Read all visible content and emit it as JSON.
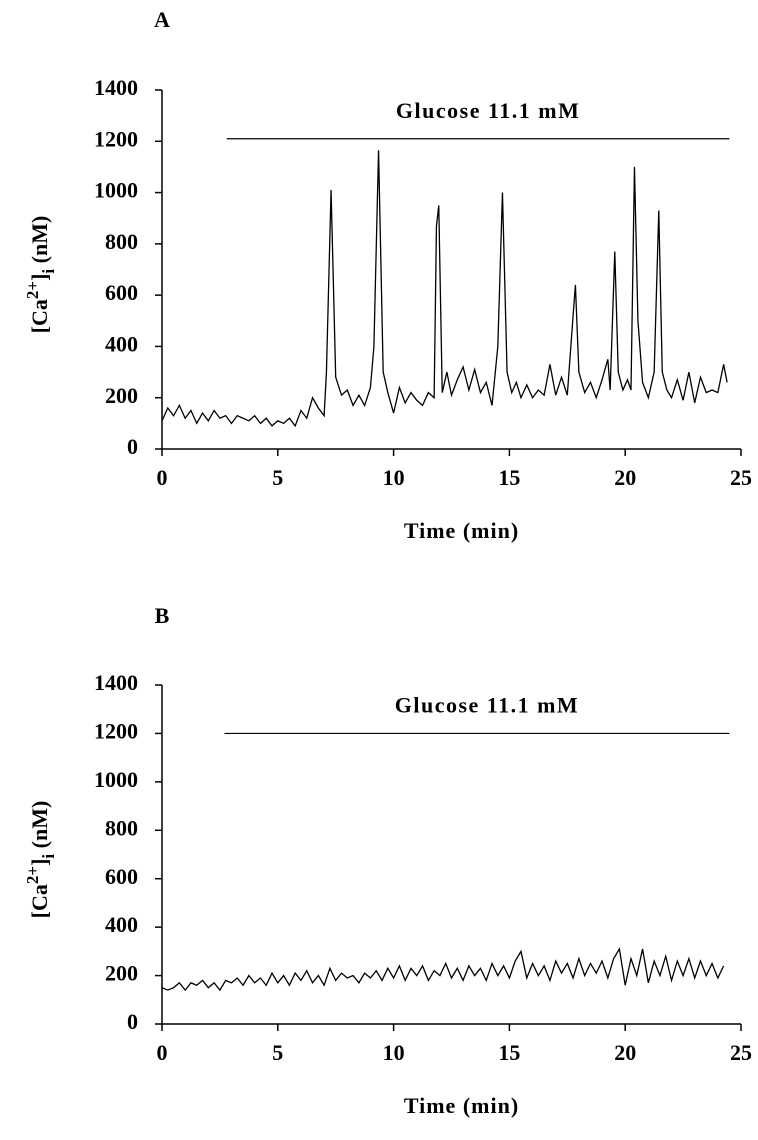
{
  "chart_data": [
    {
      "type": "line",
      "title": "A",
      "xlabel": "Time (min)",
      "ylabel": [
        "[Ca",
        "2+",
        "]",
        "i",
        " (nM)"
      ],
      "annotation": {
        "text": "Glucose 11.1 mM",
        "x": [
          2.8,
          24.5
        ],
        "y": 1210
      },
      "xlim": [
        0,
        25
      ],
      "xticks": [
        0,
        5,
        10,
        15,
        20,
        25
      ],
      "ylim": [
        0,
        1400
      ],
      "yticks": [
        0,
        200,
        400,
        600,
        800,
        1000,
        1200,
        1400
      ],
      "color": "#000000",
      "x": [
        0,
        0.25,
        0.5,
        0.75,
        1,
        1.25,
        1.5,
        1.75,
        2,
        2.25,
        2.5,
        2.75,
        3,
        3.25,
        3.5,
        3.75,
        4,
        4.25,
        4.5,
        4.75,
        5,
        5.25,
        5.5,
        5.75,
        6,
        6.25,
        6.5,
        6.75,
        7,
        7.1,
        7.3,
        7.5,
        7.75,
        8,
        8.25,
        8.5,
        8.75,
        9,
        9.15,
        9.35,
        9.55,
        9.75,
        10,
        10.25,
        10.5,
        10.75,
        11,
        11.25,
        11.5,
        11.75,
        11.85,
        11.95,
        12.1,
        12.3,
        12.5,
        12.75,
        13,
        13.25,
        13.5,
        13.75,
        14,
        14.25,
        14.5,
        14.7,
        14.9,
        15.1,
        15.3,
        15.5,
        15.75,
        16,
        16.25,
        16.5,
        16.75,
        17,
        17.25,
        17.5,
        17.75,
        17.85,
        18,
        18.25,
        18.5,
        18.75,
        19,
        19.25,
        19.35,
        19.55,
        19.7,
        19.9,
        20.1,
        20.25,
        20.4,
        20.55,
        20.75,
        21,
        21.25,
        21.45,
        21.6,
        21.8,
        22,
        22.25,
        22.5,
        22.75,
        23,
        23.25,
        23.5,
        23.75,
        24,
        24.25,
        24.4
      ],
      "values": [
        110,
        160,
        130,
        170,
        120,
        150,
        100,
        140,
        110,
        150,
        120,
        130,
        100,
        130,
        120,
        110,
        130,
        100,
        120,
        90,
        110,
        100,
        120,
        90,
        150,
        120,
        200,
        160,
        130,
        300,
        1010,
        280,
        210,
        230,
        170,
        210,
        170,
        240,
        400,
        1165,
        300,
        220,
        140,
        240,
        180,
        220,
        190,
        170,
        220,
        200,
        870,
        950,
        220,
        300,
        210,
        270,
        320,
        230,
        310,
        220,
        260,
        170,
        400,
        1000,
        300,
        220,
        260,
        200,
        250,
        200,
        230,
        210,
        330,
        210,
        280,
        210,
        520,
        640,
        300,
        220,
        260,
        200,
        270,
        350,
        230,
        770,
        300,
        230,
        270,
        230,
        1100,
        500,
        260,
        200,
        300,
        930,
        300,
        230,
        200,
        270,
        190,
        300,
        180,
        280,
        220,
        230,
        220,
        330,
        260
      ]
    },
    {
      "type": "line",
      "title": "B",
      "xlabel": "Time (min)",
      "ylabel": [
        "[Ca",
        "2+",
        "]",
        "i",
        " (nM)"
      ],
      "annotation": {
        "text": "Glucose 11.1 mM",
        "x": [
          2.7,
          24.5
        ],
        "y": 1200
      },
      "xlim": [
        0,
        25
      ],
      "xticks": [
        0,
        5,
        10,
        15,
        20,
        25
      ],
      "ylim": [
        0,
        1400
      ],
      "yticks": [
        0,
        200,
        400,
        600,
        800,
        1000,
        1200,
        1400
      ],
      "color": "#000000",
      "x": [
        0,
        0.25,
        0.5,
        0.75,
        1,
        1.25,
        1.5,
        1.75,
        2,
        2.25,
        2.5,
        2.75,
        3,
        3.25,
        3.5,
        3.75,
        4,
        4.25,
        4.5,
        4.75,
        5,
        5.25,
        5.5,
        5.75,
        6,
        6.25,
        6.5,
        6.75,
        7,
        7.25,
        7.5,
        7.75,
        8,
        8.25,
        8.5,
        8.75,
        9,
        9.25,
        9.5,
        9.75,
        10,
        10.25,
        10.5,
        10.75,
        11,
        11.25,
        11.5,
        11.75,
        12,
        12.25,
        12.5,
        12.75,
        13,
        13.25,
        13.5,
        13.75,
        14,
        14.25,
        14.5,
        14.75,
        15,
        15.25,
        15.5,
        15.75,
        16,
        16.25,
        16.5,
        16.75,
        17,
        17.25,
        17.5,
        17.75,
        18,
        18.25,
        18.5,
        18.75,
        19,
        19.25,
        19.5,
        19.75,
        20,
        20.25,
        20.5,
        20.75,
        21,
        21.25,
        21.5,
        21.75,
        22,
        22.25,
        22.5,
        22.75,
        23,
        23.25,
        23.5,
        23.75,
        24,
        24.25
      ],
      "values": [
        150,
        140,
        150,
        170,
        140,
        170,
        160,
        180,
        150,
        170,
        140,
        180,
        170,
        190,
        160,
        200,
        170,
        190,
        160,
        210,
        170,
        200,
        160,
        210,
        180,
        220,
        170,
        200,
        160,
        230,
        180,
        210,
        190,
        200,
        170,
        210,
        190,
        220,
        180,
        230,
        190,
        240,
        180,
        230,
        200,
        240,
        180,
        220,
        200,
        250,
        190,
        230,
        180,
        240,
        200,
        230,
        180,
        250,
        200,
        240,
        190,
        260,
        300,
        190,
        250,
        200,
        240,
        180,
        260,
        210,
        250,
        190,
        270,
        200,
        250,
        210,
        260,
        190,
        270,
        310,
        160,
        270,
        200,
        310,
        170,
        260,
        200,
        280,
        180,
        260,
        200,
        270,
        190,
        260,
        200,
        250,
        190,
        240
      ]
    }
  ]
}
